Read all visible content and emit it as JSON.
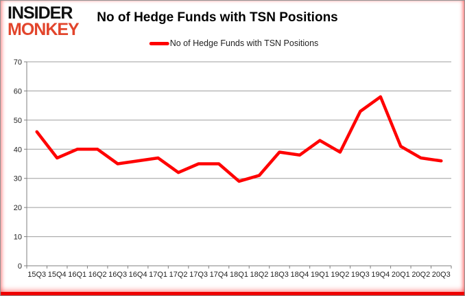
{
  "logo": {
    "line1": "INSIDER",
    "line2": "MONKEY"
  },
  "title": "No of Hedge Funds with TSN Positions",
  "legend": {
    "label": "No of Hedge Funds with TSN Positions",
    "marker_color": "#ff0000"
  },
  "chart_data": {
    "type": "line",
    "title": "No of Hedge Funds with TSN Positions",
    "categories": [
      "15Q3",
      "15Q4",
      "16Q1",
      "16Q2",
      "16Q3",
      "16Q4",
      "17Q1",
      "17Q2",
      "17Q3",
      "17Q4",
      "18Q1",
      "18Q2",
      "18Q3",
      "18Q4",
      "19Q1",
      "19Q2",
      "19Q3",
      "19Q4",
      "20Q1",
      "20Q2",
      "20Q3"
    ],
    "series": [
      {
        "name": "No of Hedge Funds with TSN Positions",
        "color": "#ff0000",
        "values": [
          46,
          37,
          40,
          40,
          35,
          36,
          37,
          32,
          35,
          35,
          29,
          31,
          39,
          38,
          43,
          39,
          53,
          58,
          41,
          37,
          36
        ]
      }
    ],
    "xlabel": "",
    "ylabel": "",
    "ylim": [
      0,
      70
    ],
    "ytick_step": 10,
    "grid": true,
    "legend_position": "top",
    "colors": {
      "gridline": "#9d9d9d",
      "axis": "#7f7f7f"
    }
  }
}
